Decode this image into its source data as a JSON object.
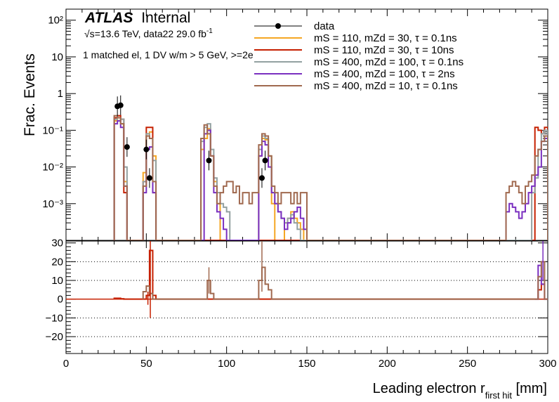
{
  "atlas": {
    "brand": "ATLAS",
    "status": "Internal"
  },
  "info": {
    "sqrt": "√s",
    "energy": "=13.6 TeV, data22 29.0 fb",
    "lumi_exp": "-1",
    "selection": "1 matched el, 1 DV w/m > 5 GeV, >=2e"
  },
  "chart_data": [
    {
      "type": "step-histogram",
      "panel": "main",
      "ylabel": "Frac. Events",
      "log_y": true,
      "xlim": [
        0,
        300
      ],
      "ylim": [
        0.0001,
        200
      ],
      "y_ticks": [
        {
          "value": 100,
          "label": "10²"
        },
        {
          "value": 10,
          "label": "10"
        },
        {
          "value": 1,
          "label": "1"
        },
        {
          "value": 0.1,
          "label": "10⁻¹"
        },
        {
          "value": 0.01,
          "label": "10⁻²"
        },
        {
          "value": 0.001,
          "label": "10⁻³"
        }
      ],
      "legend_position": "top-right",
      "series": [
        {
          "name": "data",
          "style": "points",
          "color": "#000000",
          "x": [
            32,
            34,
            38,
            50,
            52,
            89,
            122,
            124
          ],
          "y": [
            0.45,
            0.48,
            0.035,
            0.03,
            0.005,
            0.015,
            0.005,
            0.015
          ]
        },
        {
          "name": "mS = 110, mZd = 30, τ = 0.1ns",
          "color": "#f5a623",
          "edges": [
            30,
            32,
            34,
            36,
            38,
            46,
            48,
            50,
            52,
            54,
            56,
            80,
            82,
            84,
            86,
            88,
            90,
            92,
            94,
            96,
            98,
            120,
            122,
            124,
            126,
            128,
            130,
            136,
            138,
            140,
            142,
            144,
            146,
            148,
            150
          ],
          "y": [
            0.18,
            0.22,
            0.15,
            0.004,
            0,
            0,
            0.007,
            0.08,
            0.09,
            0.02,
            0,
            0,
            0,
            0.03,
            0.06,
            0.11,
            0.02,
            0.004,
            0.001,
            0,
            0,
            0.02,
            0.06,
            0.055,
            0.02,
            0.001,
            0,
            0.0003,
            0.0004,
            0.0006,
            0.0004,
            0.0003,
            0.0002,
            0
          ]
        },
        {
          "name": "mS = 110, mZd = 30, τ = 10ns",
          "color": "#c62000",
          "edges": [
            30,
            32,
            34,
            36,
            38,
            46,
            48,
            50,
            52,
            54,
            56,
            292,
            294,
            296,
            298,
            300
          ],
          "y": [
            0.22,
            0.25,
            0.2,
            0.002,
            0,
            0,
            0.004,
            0.12,
            0.12,
            0.002,
            0,
            0.12,
            0.1,
            0.08,
            0.12
          ]
        },
        {
          "name": "mS = 400, mZd = 100, τ = 0.1ns",
          "color": "#93a1a1",
          "edges": [
            30,
            32,
            34,
            36,
            38,
            46,
            48,
            50,
            52,
            54,
            56,
            84,
            86,
            88,
            90,
            92,
            94,
            96,
            98,
            100,
            102,
            120,
            122,
            124,
            126,
            128,
            130,
            132,
            134,
            136,
            138,
            140,
            142,
            144,
            146,
            148,
            150,
            290,
            292,
            294,
            296,
            298,
            300
          ],
          "y": [
            0.2,
            0.22,
            0.2,
            0.01,
            0,
            0,
            0.004,
            0.08,
            0.06,
            0.015,
            0,
            0.05,
            0.12,
            0.15,
            0.03,
            0.005,
            0.002,
            0.001,
            0.0008,
            0.0006,
            0,
            0.03,
            0.07,
            0.06,
            0.02,
            0.002,
            0.001,
            0.0006,
            0.0004,
            0.0003,
            0.0004,
            0.0005,
            0.0003,
            0.0002,
            0.0001,
            0.0001,
            0,
            0.002,
            0.005,
            0.03,
            0.08,
            0.1
          ]
        },
        {
          "name": "mS = 400, mZd = 100, τ = 2ns",
          "color": "#7a2fc0",
          "edges": [
            30,
            32,
            34,
            36,
            38,
            46,
            48,
            50,
            52,
            54,
            56,
            86,
            88,
            90,
            92,
            94,
            96,
            98,
            100,
            120,
            122,
            124,
            126,
            128,
            130,
            132,
            134,
            136,
            138,
            140,
            142,
            144,
            146,
            148,
            150,
            274,
            276,
            278,
            280,
            282,
            284,
            286,
            288,
            290,
            292,
            294,
            296,
            298,
            300
          ],
          "y": [
            0.15,
            0.18,
            0.12,
            0.003,
            0,
            0,
            0.002,
            0.03,
            0.035,
            0.002,
            0,
            0.08,
            0.1,
            0.02,
            0.002,
            0.0006,
            0.0004,
            0.0002,
            0,
            0.02,
            0.05,
            0.04,
            0.01,
            0.002,
            0.001,
            0.0006,
            0.0004,
            0.0002,
            0.0003,
            0.0004,
            0.0006,
            0.0008,
            0.0004,
            0.0002,
            0,
            0.0006,
            0.001,
            0.0008,
            0.0006,
            0.0004,
            0.0006,
            0.001,
            0.002,
            0.003,
            0.006,
            0.01,
            0.05,
            0.06,
            0
          ]
        },
        {
          "name": "mS = 400, mZd = 10, τ = 0.1ns",
          "color": "#a0694f",
          "edges": [
            30,
            32,
            34,
            36,
            38,
            46,
            48,
            50,
            52,
            54,
            56,
            84,
            86,
            88,
            90,
            92,
            94,
            96,
            98,
            100,
            102,
            104,
            106,
            108,
            110,
            112,
            114,
            116,
            118,
            120,
            122,
            124,
            126,
            128,
            130,
            132,
            134,
            136,
            138,
            140,
            142,
            144,
            146,
            148,
            150,
            274,
            276,
            278,
            280,
            282,
            284,
            286,
            288,
            290,
            292,
            294,
            296,
            298,
            300
          ],
          "y": [
            0.25,
            0.22,
            0.15,
            0.003,
            0,
            0,
            0.003,
            0.07,
            0.06,
            0.004,
            0,
            0.06,
            0.14,
            0.08,
            0.02,
            0.003,
            0.001,
            0.002,
            0.003,
            0.004,
            0.004,
            0.002,
            0.003,
            0.001,
            0.002,
            0.002,
            0.001,
            0.002,
            0.002,
            0.04,
            0.08,
            0.07,
            0.02,
            0.003,
            0.002,
            0.001,
            0.002,
            0.002,
            0.002,
            0.001,
            0.002,
            0.001,
            0.002,
            0.002,
            0,
            0.002,
            0.003,
            0.004,
            0.003,
            0.002,
            0.001,
            0.003,
            0.004,
            0.006,
            0.02,
            0.03,
            0.05,
            0.07,
            0
          ]
        }
      ]
    },
    {
      "type": "step-histogram",
      "panel": "ratio",
      "xlabel": "Leading electron r",
      "xlabel_sub": "first hit",
      "xlabel_unit": " [mm]",
      "xlim": [
        0,
        300
      ],
      "ylim": [
        -29,
        31
      ],
      "x_ticks": [
        0,
        50,
        100,
        150,
        200,
        250,
        300
      ],
      "y_ticks": [
        30,
        20,
        10,
        0,
        -10,
        -20
      ],
      "grid_y": [
        20,
        10,
        -10,
        -20
      ],
      "series": [
        {
          "name": "mS = 110, mZd = 30, τ = 10ns",
          "color": "#c62000",
          "edges": [
            30,
            34,
            36,
            48,
            50,
            52,
            54,
            56,
            292,
            294,
            296,
            298,
            300
          ],
          "y": [
            0.5,
            0.2,
            0,
            0,
            2,
            26,
            2,
            0,
            0,
            5,
            8,
            0
          ]
        },
        {
          "name": "mS = 400, mZd = 100, τ = 2ns",
          "color": "#7a2fc0",
          "edges": [
            292,
            294,
            296,
            298,
            300
          ],
          "y": [
            0,
            18,
            8,
            0
          ]
        },
        {
          "name": "mS = 400, mZd = 10, τ = 0.1ns",
          "color": "#a0694f",
          "edges": [
            48,
            50,
            52,
            54,
            86,
            88,
            90,
            92,
            120,
            122,
            124,
            126,
            128,
            294,
            296,
            298,
            300
          ],
          "y": [
            4,
            7,
            3,
            0,
            0,
            10,
            3,
            0,
            10,
            17,
            8,
            5,
            0,
            12,
            20,
            0
          ]
        }
      ],
      "error_bars": [
        {
          "x": 51,
          "ylow": -3,
          "yhigh": 4,
          "color": "#c62000"
        },
        {
          "x": 52.5,
          "ylow": -10,
          "yhigh": 31,
          "color": "#c62000"
        },
        {
          "x": 89,
          "ylow": 3,
          "yhigh": 17,
          "color": "#a0694f"
        },
        {
          "x": 122,
          "ylow": 4,
          "yhigh": 31,
          "color": "#a0694f"
        },
        {
          "x": 297,
          "ylow": 10,
          "yhigh": 31,
          "color": "#7a2fc0"
        }
      ]
    }
  ],
  "colors": {
    "axis": "#000000",
    "grid": "#000000",
    "background": "#ffffff"
  }
}
